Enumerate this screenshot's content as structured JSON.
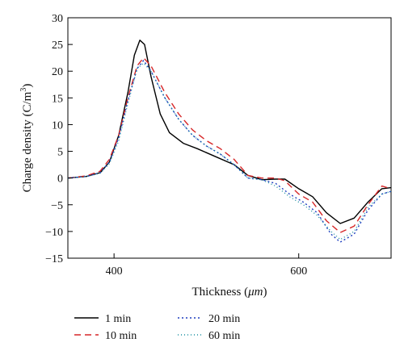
{
  "chart_data": {
    "type": "line",
    "title": "",
    "xlabel_main": "Thickness (",
    "xlabel_unit": "μm",
    "xlabel_close": ")",
    "ylabel_main": "Charge density (C/m",
    "ylabel_sup": "3",
    "ylabel_close": ")",
    "xlim": [
      350,
      700
    ],
    "ylim": [
      -15,
      30
    ],
    "x_ticks": [
      400,
      600
    ],
    "y_ticks": [
      -15,
      -10,
      -5,
      0,
      5,
      10,
      15,
      20,
      25,
      30
    ],
    "legend_position": "bottom",
    "grid": false,
    "series": [
      {
        "name": "1 min",
        "color": "#000000",
        "dash": "solid",
        "points": [
          [
            350,
            0
          ],
          [
            370,
            0.3
          ],
          [
            385,
            1.0
          ],
          [
            395,
            3.0
          ],
          [
            405,
            8.0
          ],
          [
            415,
            16.0
          ],
          [
            422,
            23.0
          ],
          [
            428,
            25.8
          ],
          [
            433,
            25.0
          ],
          [
            440,
            19.0
          ],
          [
            450,
            12.0
          ],
          [
            460,
            8.5
          ],
          [
            475,
            6.5
          ],
          [
            490,
            5.5
          ],
          [
            510,
            4.0
          ],
          [
            530,
            2.5
          ],
          [
            545,
            0.5
          ],
          [
            560,
            -0.3
          ],
          [
            575,
            -0.2
          ],
          [
            585,
            -0.2
          ],
          [
            600,
            -2.0
          ],
          [
            615,
            -3.5
          ],
          [
            630,
            -6.5
          ],
          [
            645,
            -8.5
          ],
          [
            660,
            -7.5
          ],
          [
            675,
            -4.5
          ],
          [
            690,
            -2.0
          ],
          [
            700,
            -1.8
          ]
        ]
      },
      {
        "name": "10 min",
        "color": "#d62728",
        "dash": "8,5",
        "points": [
          [
            350,
            0
          ],
          [
            370,
            0.4
          ],
          [
            385,
            1.3
          ],
          [
            395,
            3.5
          ],
          [
            405,
            8.0
          ],
          [
            415,
            15.0
          ],
          [
            425,
            21.0
          ],
          [
            432,
            22.5
          ],
          [
            440,
            21.0
          ],
          [
            455,
            16.0
          ],
          [
            470,
            12.0
          ],
          [
            485,
            9.0
          ],
          [
            500,
            7.0
          ],
          [
            515,
            5.5
          ],
          [
            530,
            3.5
          ],
          [
            545,
            0.5
          ],
          [
            560,
            0.0
          ],
          [
            575,
            0.0
          ],
          [
            585,
            -0.5
          ],
          [
            600,
            -3.0
          ],
          [
            615,
            -4.5
          ],
          [
            630,
            -8.0
          ],
          [
            645,
            -10.2
          ],
          [
            660,
            -9.0
          ],
          [
            675,
            -5.0
          ],
          [
            690,
            -1.5
          ],
          [
            700,
            -2.0
          ]
        ]
      },
      {
        "name": "20 min",
        "color": "#1f3fbf",
        "dash": "2,3",
        "points": [
          [
            350,
            0
          ],
          [
            370,
            0.3
          ],
          [
            385,
            1.0
          ],
          [
            395,
            3.0
          ],
          [
            405,
            7.5
          ],
          [
            415,
            14.5
          ],
          [
            425,
            20.5
          ],
          [
            432,
            22.0
          ],
          [
            440,
            20.0
          ],
          [
            455,
            15.0
          ],
          [
            470,
            11.0
          ],
          [
            485,
            8.0
          ],
          [
            500,
            6.0
          ],
          [
            515,
            4.5
          ],
          [
            530,
            2.5
          ],
          [
            545,
            0.0
          ],
          [
            560,
            -0.3
          ],
          [
            575,
            -1.0
          ],
          [
            590,
            -3.0
          ],
          [
            605,
            -4.5
          ],
          [
            620,
            -6.5
          ],
          [
            635,
            -10.5
          ],
          [
            645,
            -12.0
          ],
          [
            660,
            -10.5
          ],
          [
            675,
            -6.0
          ],
          [
            690,
            -3.0
          ],
          [
            700,
            -2.5
          ]
        ]
      },
      {
        "name": "60 min",
        "color": "#1a8fa0",
        "dash": "1,3",
        "points": [
          [
            350,
            0
          ],
          [
            370,
            0.3
          ],
          [
            385,
            0.9
          ],
          [
            395,
            2.7
          ],
          [
            405,
            7.0
          ],
          [
            415,
            14.0
          ],
          [
            425,
            20.5
          ],
          [
            432,
            21.5
          ],
          [
            440,
            20.0
          ],
          [
            455,
            15.0
          ],
          [
            470,
            11.0
          ],
          [
            485,
            8.0
          ],
          [
            500,
            6.0
          ],
          [
            515,
            4.5
          ],
          [
            530,
            2.5
          ],
          [
            545,
            0.0
          ],
          [
            560,
            -0.3
          ],
          [
            575,
            -1.5
          ],
          [
            590,
            -3.5
          ],
          [
            605,
            -5.0
          ],
          [
            620,
            -7.0
          ],
          [
            635,
            -10.0
          ],
          [
            645,
            -11.5
          ],
          [
            660,
            -10.0
          ],
          [
            675,
            -5.5
          ],
          [
            690,
            -3.0
          ],
          [
            700,
            -2.5
          ]
        ]
      }
    ]
  }
}
